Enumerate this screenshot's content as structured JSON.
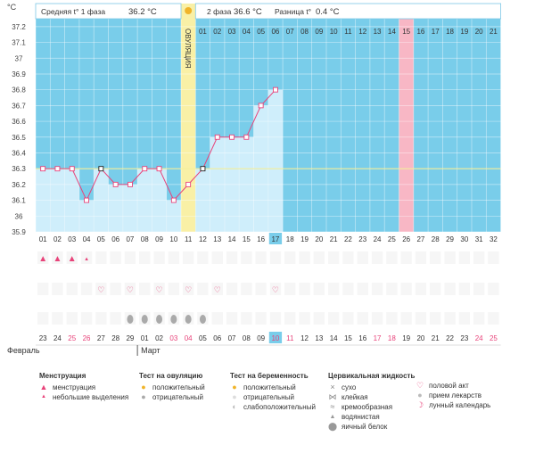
{
  "chart_data": {
    "type": "line",
    "y_unit": "°C",
    "ylim": [
      35.9,
      37.25
    ],
    "y_ticks": [
      "37.2",
      "37.1",
      "37",
      "36.9",
      "36.8",
      "36.7",
      "36.6",
      "36.5",
      "36.4",
      "36.3",
      "36.2",
      "36.1",
      "36",
      "35.9"
    ],
    "header": {
      "phase1_label": "Средняя t° 1 фаза",
      "phase1_value": "36.2 °C",
      "phase2_label": "2 фаза",
      "phase2_value": "36.6 °C",
      "diff_label": "Разница t°",
      "diff_value": "0.4 °C"
    },
    "ovulation_label": "ОВУЛЯЦИЯ",
    "ovulation_day": 11,
    "highlight_day": 17,
    "pink_day": 26,
    "coverline": 36.3,
    "top_day_numbers": [
      "01",
      "02",
      "03",
      "04",
      "05",
      "06",
      "07",
      "08",
      "09",
      "10",
      "11",
      "12",
      "13",
      "14",
      "15",
      "16",
      "17",
      "18",
      "19",
      "20",
      "21"
    ],
    "cycle_days": [
      "01",
      "02",
      "03",
      "04",
      "05",
      "06",
      "07",
      "08",
      "09",
      "10",
      "11",
      "12",
      "13",
      "14",
      "15",
      "16",
      "17",
      "18",
      "19",
      "20",
      "21",
      "22",
      "23",
      "24",
      "25",
      "26",
      "27",
      "28",
      "29",
      "30",
      "31",
      "32"
    ],
    "temperatures": [
      36.3,
      36.3,
      36.3,
      36.1,
      36.3,
      36.2,
      36.2,
      36.3,
      36.3,
      36.1,
      36.2,
      36.3,
      36.5,
      36.5,
      36.5,
      36.7,
      36.8
    ],
    "black_markers": [
      5,
      12
    ],
    "menstruation": {
      "full": [
        1,
        2,
        3
      ],
      "light": [
        4
      ]
    },
    "intercourse_days": [
      5,
      7,
      9,
      11,
      13,
      17
    ],
    "cervical_egg_white_days": [
      7,
      8,
      9,
      10,
      11,
      12
    ],
    "dates": [
      "23",
      "24",
      "25",
      "26",
      "27",
      "28",
      "29",
      "01",
      "02",
      "03",
      "04",
      "05",
      "06",
      "07",
      "08",
      "09",
      "10",
      "11",
      "12",
      "13",
      "14",
      "15",
      "16",
      "17",
      "18",
      "19",
      "20",
      "21",
      "22",
      "23",
      "24",
      "25"
    ],
    "weekend_cycle_days": [
      3,
      4,
      10,
      11,
      17,
      18,
      24,
      25,
      31,
      32
    ],
    "months": {
      "feb": "Февраль",
      "mar": "Март"
    },
    "colors": {
      "sky": "#79cdea",
      "bar": "#cfeefb",
      "line": "#e8437a",
      "ovulation": "#f9f0a6",
      "pink": "#f8b7c5",
      "weekend": "#e8437a"
    }
  },
  "legend": {
    "menstruation": {
      "title": "Менструация",
      "items": [
        "менструация",
        "небольшие выделения"
      ]
    },
    "ovulation_test": {
      "title": "Тест на овуляцию",
      "items": [
        "положительный",
        "отрицательный"
      ]
    },
    "pregnancy_test": {
      "title": "Тест на беременность",
      "items": [
        "положительный",
        "отрицательный",
        "слабоположительный"
      ]
    },
    "cervical": {
      "title": "Цервикальная жидкость",
      "items": [
        "сухо",
        "клейкая",
        "кремообразная",
        "водянистая",
        "яичный белок"
      ]
    },
    "other": {
      "items": [
        "половой акт",
        "прием лекарств",
        "лунный календарь"
      ]
    }
  }
}
